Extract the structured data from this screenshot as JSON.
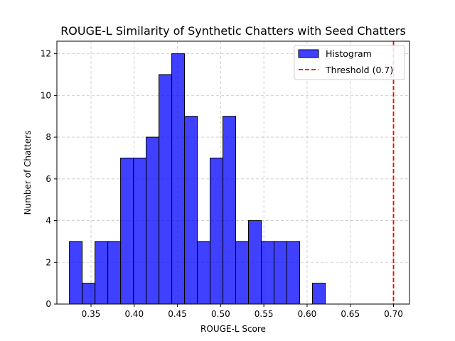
{
  "chart_data": {
    "type": "bar",
    "title": "ROUGE-L Similarity of Synthetic Chatters with Seed Chatters",
    "xlabel": "ROUGE-L Score",
    "ylabel": "Number of Chatters",
    "xlim": [
      0.3105,
      0.7185
    ],
    "ylim": [
      0,
      12.6
    ],
    "grid": true,
    "grid_style": "dashed",
    "x_ticks": [
      "0.35",
      "0.40",
      "0.45",
      "0.50",
      "0.55",
      "0.60",
      "0.65",
      "0.70"
    ],
    "x_tick_values": [
      0.35,
      0.4,
      0.45,
      0.5,
      0.55,
      0.6,
      0.65,
      0.7
    ],
    "y_ticks": [
      "0",
      "2",
      "4",
      "6",
      "8",
      "10",
      "12"
    ],
    "y_tick_values": [
      0,
      2,
      4,
      6,
      8,
      10,
      12
    ],
    "bar_color": "#0000ff",
    "bar_edge_color": "#000000",
    "bin_start": 0.325,
    "bin_width": 0.0148,
    "values": [
      3,
      1,
      3,
      3,
      7,
      7,
      8,
      11,
      12,
      9,
      3,
      7,
      9,
      3,
      4,
      3,
      3,
      3,
      0,
      1
    ],
    "threshold": {
      "value": 0.7,
      "color": "#ff0000",
      "label": "Threshold (0.7)"
    },
    "legend": {
      "placement": "top-right",
      "entries": [
        "Histogram",
        "Threshold (0.7)"
      ]
    }
  }
}
